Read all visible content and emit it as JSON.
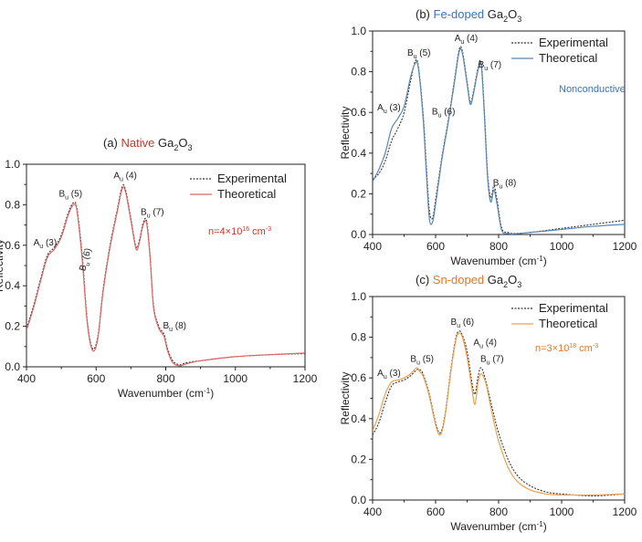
{
  "chart_data": [
    {
      "type": "line",
      "panel": "(a)",
      "title_prefix": "Native",
      "title_formula": {
        "base": "Ga",
        "sub1": "2",
        "mid": "O",
        "sub2": "3"
      },
      "xlabel": "Wavenumber (cm-1)",
      "xlabel_base": "Wavenumber (cm",
      "xlabel_sup": "-1",
      "xlabel_tail": ")",
      "ylabel": "Reflectivity",
      "xlim": [
        400,
        1200
      ],
      "ylim": [
        0,
        1.0
      ],
      "xticks": [
        "400",
        "600",
        "800",
        "1000",
        "1200"
      ],
      "yticks": [
        "0.0",
        "0.2",
        "0.4",
        "0.6",
        "0.8",
        "1.0"
      ],
      "grid": false,
      "legend_position": "top-right",
      "annotation": {
        "base": "n=4×10",
        "sup": "16",
        "unit": " cm",
        "unit_sup": "-3"
      },
      "mode_labels": [
        {
          "letter": "A",
          "sub": "u",
          "num": "(3)",
          "x": 420,
          "y": 0.6
        },
        {
          "letter": "B",
          "sub": "u",
          "num": "(5)",
          "x": 493,
          "y": 0.84
        },
        {
          "letter": "B",
          "sub": "u",
          "num": "(6)",
          "x": 568,
          "y": 0.47,
          "rotated": true
        },
        {
          "letter": "A",
          "sub": "u",
          "num": "(4)",
          "x": 650,
          "y": 0.93
        },
        {
          "letter": "B",
          "sub": "u",
          "num": "(7)",
          "x": 728,
          "y": 0.75
        },
        {
          "letter": "B",
          "sub": "u",
          "num": "(8)",
          "x": 792,
          "y": 0.19
        }
      ],
      "series": [
        {
          "name": "Experimental",
          "style": "dotted",
          "color": "#333333",
          "x": [
            400,
            420,
            440,
            460,
            480,
            500,
            520,
            535,
            545,
            560,
            575,
            590,
            605,
            620,
            640,
            660,
            675,
            685,
            700,
            715,
            725,
            735,
            745,
            755,
            765,
            780,
            795,
            805,
            820,
            840,
            860,
            900,
            1000,
            1100,
            1200
          ],
          "y": [
            0.19,
            0.3,
            0.43,
            0.55,
            0.59,
            0.65,
            0.76,
            0.81,
            0.78,
            0.55,
            0.22,
            0.09,
            0.15,
            0.38,
            0.6,
            0.77,
            0.89,
            0.87,
            0.73,
            0.59,
            0.63,
            0.71,
            0.72,
            0.55,
            0.3,
            0.2,
            0.16,
            0.09,
            0.03,
            0.01,
            0.02,
            0.03,
            0.05,
            0.06,
            0.065
          ]
        },
        {
          "name": "Theoretical",
          "style": "solid",
          "color": "#e06666",
          "x": [
            400,
            420,
            440,
            460,
            480,
            500,
            520,
            535,
            545,
            560,
            575,
            590,
            605,
            620,
            640,
            660,
            675,
            685,
            700,
            715,
            725,
            735,
            745,
            755,
            765,
            780,
            795,
            805,
            820,
            840,
            860,
            900,
            1000,
            1100,
            1200
          ],
          "y": [
            0.18,
            0.29,
            0.42,
            0.54,
            0.58,
            0.64,
            0.75,
            0.8,
            0.77,
            0.53,
            0.21,
            0.08,
            0.14,
            0.37,
            0.59,
            0.76,
            0.88,
            0.86,
            0.72,
            0.58,
            0.62,
            0.7,
            0.71,
            0.54,
            0.29,
            0.19,
            0.15,
            0.08,
            0.02,
            0.005,
            0.015,
            0.03,
            0.05,
            0.06,
            0.068
          ]
        }
      ]
    },
    {
      "type": "line",
      "panel": "(b)",
      "title_prefix": "Fe-doped",
      "title_formula": {
        "base": "Ga",
        "sub1": "2",
        "mid": "O",
        "sub2": "3"
      },
      "xlabel": "Wavenumber (cm-1)",
      "xlabel_base": "Wavenumber (cm",
      "xlabel_sup": "-1",
      "xlabel_tail": ")",
      "ylabel": "Reflectivity",
      "xlim": [
        400,
        1200
      ],
      "ylim": [
        0,
        1.0
      ],
      "xticks": [
        "400",
        "600",
        "800",
        "1000",
        "1200"
      ],
      "yticks": [
        "0.0",
        "0.2",
        "0.4",
        "0.6",
        "0.8",
        "1.0"
      ],
      "grid": false,
      "legend_position": "top-right",
      "annotation": {
        "base": "Nonconductive"
      },
      "mode_labels": [
        {
          "letter": "A",
          "sub": "u",
          "num": "(3)",
          "x": 415,
          "y": 0.61
        },
        {
          "letter": "B",
          "sub": "u",
          "num": "(5)",
          "x": 510,
          "y": 0.88
        },
        {
          "letter": "B",
          "sub": "u",
          "num": "(6)",
          "x": 588,
          "y": 0.59
        },
        {
          "letter": "A",
          "sub": "u",
          "num": "(4)",
          "x": 660,
          "y": 0.95
        },
        {
          "letter": "B",
          "sub": "u",
          "num": "(7)",
          "x": 735,
          "y": 0.82
        },
        {
          "letter": "B",
          "sub": "u",
          "num": "(8)",
          "x": 782,
          "y": 0.24
        }
      ],
      "series": [
        {
          "name": "Experimental",
          "style": "dotted",
          "color": "#333333",
          "x": [
            400,
            420,
            440,
            460,
            480,
            500,
            520,
            535,
            545,
            560,
            570,
            580,
            590,
            600,
            620,
            640,
            660,
            675,
            685,
            700,
            710,
            720,
            735,
            745,
            755,
            765,
            775,
            785,
            795,
            810,
            830,
            850,
            900,
            1000,
            1100,
            1200
          ],
          "y": [
            0.27,
            0.3,
            0.36,
            0.46,
            0.52,
            0.6,
            0.75,
            0.85,
            0.83,
            0.6,
            0.35,
            0.12,
            0.08,
            0.17,
            0.38,
            0.56,
            0.76,
            0.91,
            0.9,
            0.75,
            0.65,
            0.7,
            0.82,
            0.84,
            0.6,
            0.3,
            0.18,
            0.24,
            0.17,
            0.03,
            0.01,
            0.005,
            0.01,
            0.03,
            0.05,
            0.07
          ]
        },
        {
          "name": "Theoretical",
          "style": "solid",
          "color": "#5b87b5",
          "x": [
            400,
            420,
            440,
            460,
            480,
            500,
            520,
            535,
            545,
            560,
            570,
            580,
            590,
            600,
            620,
            640,
            660,
            675,
            685,
            700,
            710,
            720,
            735,
            745,
            755,
            765,
            775,
            785,
            795,
            810,
            830,
            850,
            900,
            1000,
            1100,
            1200
          ],
          "y": [
            0.26,
            0.32,
            0.4,
            0.52,
            0.57,
            0.63,
            0.77,
            0.84,
            0.82,
            0.58,
            0.32,
            0.08,
            0.06,
            0.15,
            0.37,
            0.55,
            0.75,
            0.9,
            0.89,
            0.74,
            0.64,
            0.69,
            0.81,
            0.83,
            0.58,
            0.28,
            0.16,
            0.22,
            0.15,
            0.02,
            0.005,
            0.003,
            0.01,
            0.025,
            0.04,
            0.05
          ]
        }
      ]
    },
    {
      "type": "line",
      "panel": "(c)",
      "title_prefix": "Sn-doped",
      "title_formula": {
        "base": "Ga",
        "sub1": "2",
        "mid": "O",
        "sub2": "3"
      },
      "xlabel": "Wavenumber (cm-1)",
      "xlabel_base": "Wavenumber (cm",
      "xlabel_sup": "-1",
      "xlabel_tail": ")",
      "ylabel": "Reflectivity",
      "xlim": [
        400,
        1200
      ],
      "ylim": [
        0,
        1.0
      ],
      "xticks": [
        "400",
        "600",
        "800",
        "1000",
        "1200"
      ],
      "yticks": [
        "0.0",
        "0.2",
        "0.4",
        "0.6",
        "0.8",
        "1.0"
      ],
      "grid": false,
      "legend_position": "top-right",
      "annotation": {
        "base": "n=3×10",
        "sup": "18",
        "unit": " cm",
        "unit_sup": "-3"
      },
      "mode_labels": [
        {
          "letter": "A",
          "sub": "u",
          "num": "(3)",
          "x": 415,
          "y": 0.61
        },
        {
          "letter": "B",
          "sub": "u",
          "num": "(5)",
          "x": 520,
          "y": 0.68
        },
        {
          "letter": "B",
          "sub": "u",
          "num": "(6)",
          "x": 648,
          "y": 0.86
        },
        {
          "letter": "A",
          "sub": "u",
          "num": "(4)",
          "x": 720,
          "y": 0.76
        },
        {
          "letter": "B",
          "sub": "u",
          "num": "(7)",
          "x": 742,
          "y": 0.68
        }
      ],
      "series": [
        {
          "name": "Experimental",
          "style": "dotted",
          "color": "#333333",
          "x": [
            400,
            420,
            440,
            460,
            480,
            500,
            520,
            540,
            550,
            560,
            580,
            600,
            615,
            630,
            650,
            665,
            675,
            685,
            700,
            715,
            725,
            735,
            745,
            760,
            780,
            800,
            830,
            860,
            900,
            950,
            1000,
            1100,
            1200
          ],
          "y": [
            0.32,
            0.38,
            0.48,
            0.56,
            0.58,
            0.59,
            0.61,
            0.64,
            0.64,
            0.62,
            0.52,
            0.38,
            0.33,
            0.42,
            0.66,
            0.8,
            0.83,
            0.81,
            0.73,
            0.58,
            0.52,
            0.61,
            0.65,
            0.58,
            0.45,
            0.33,
            0.2,
            0.12,
            0.07,
            0.04,
            0.03,
            0.02,
            0.03
          ]
        },
        {
          "name": "Theoretical",
          "style": "solid",
          "color": "#f0a04b",
          "x": [
            400,
            420,
            440,
            460,
            480,
            500,
            520,
            540,
            550,
            560,
            580,
            600,
            615,
            630,
            650,
            665,
            675,
            685,
            700,
            715,
            725,
            735,
            745,
            760,
            780,
            800,
            830,
            860,
            900,
            950,
            1000,
            1100,
            1200
          ],
          "y": [
            0.34,
            0.42,
            0.52,
            0.58,
            0.59,
            0.6,
            0.62,
            0.65,
            0.63,
            0.61,
            0.51,
            0.37,
            0.32,
            0.41,
            0.65,
            0.79,
            0.82,
            0.8,
            0.7,
            0.55,
            0.47,
            0.58,
            0.62,
            0.57,
            0.42,
            0.29,
            0.16,
            0.09,
            0.05,
            0.03,
            0.025,
            0.025,
            0.03
          ]
        }
      ]
    }
  ],
  "colors": {
    "native_title": "#c0392b",
    "native_annotation": "#c0392b",
    "fe_title": "#3a73b7",
    "fe_annotation": "#3a73b7",
    "sn_title": "#e8742a",
    "sn_annotation": "#e8742a",
    "axis": "#222222",
    "text": "#222222"
  }
}
